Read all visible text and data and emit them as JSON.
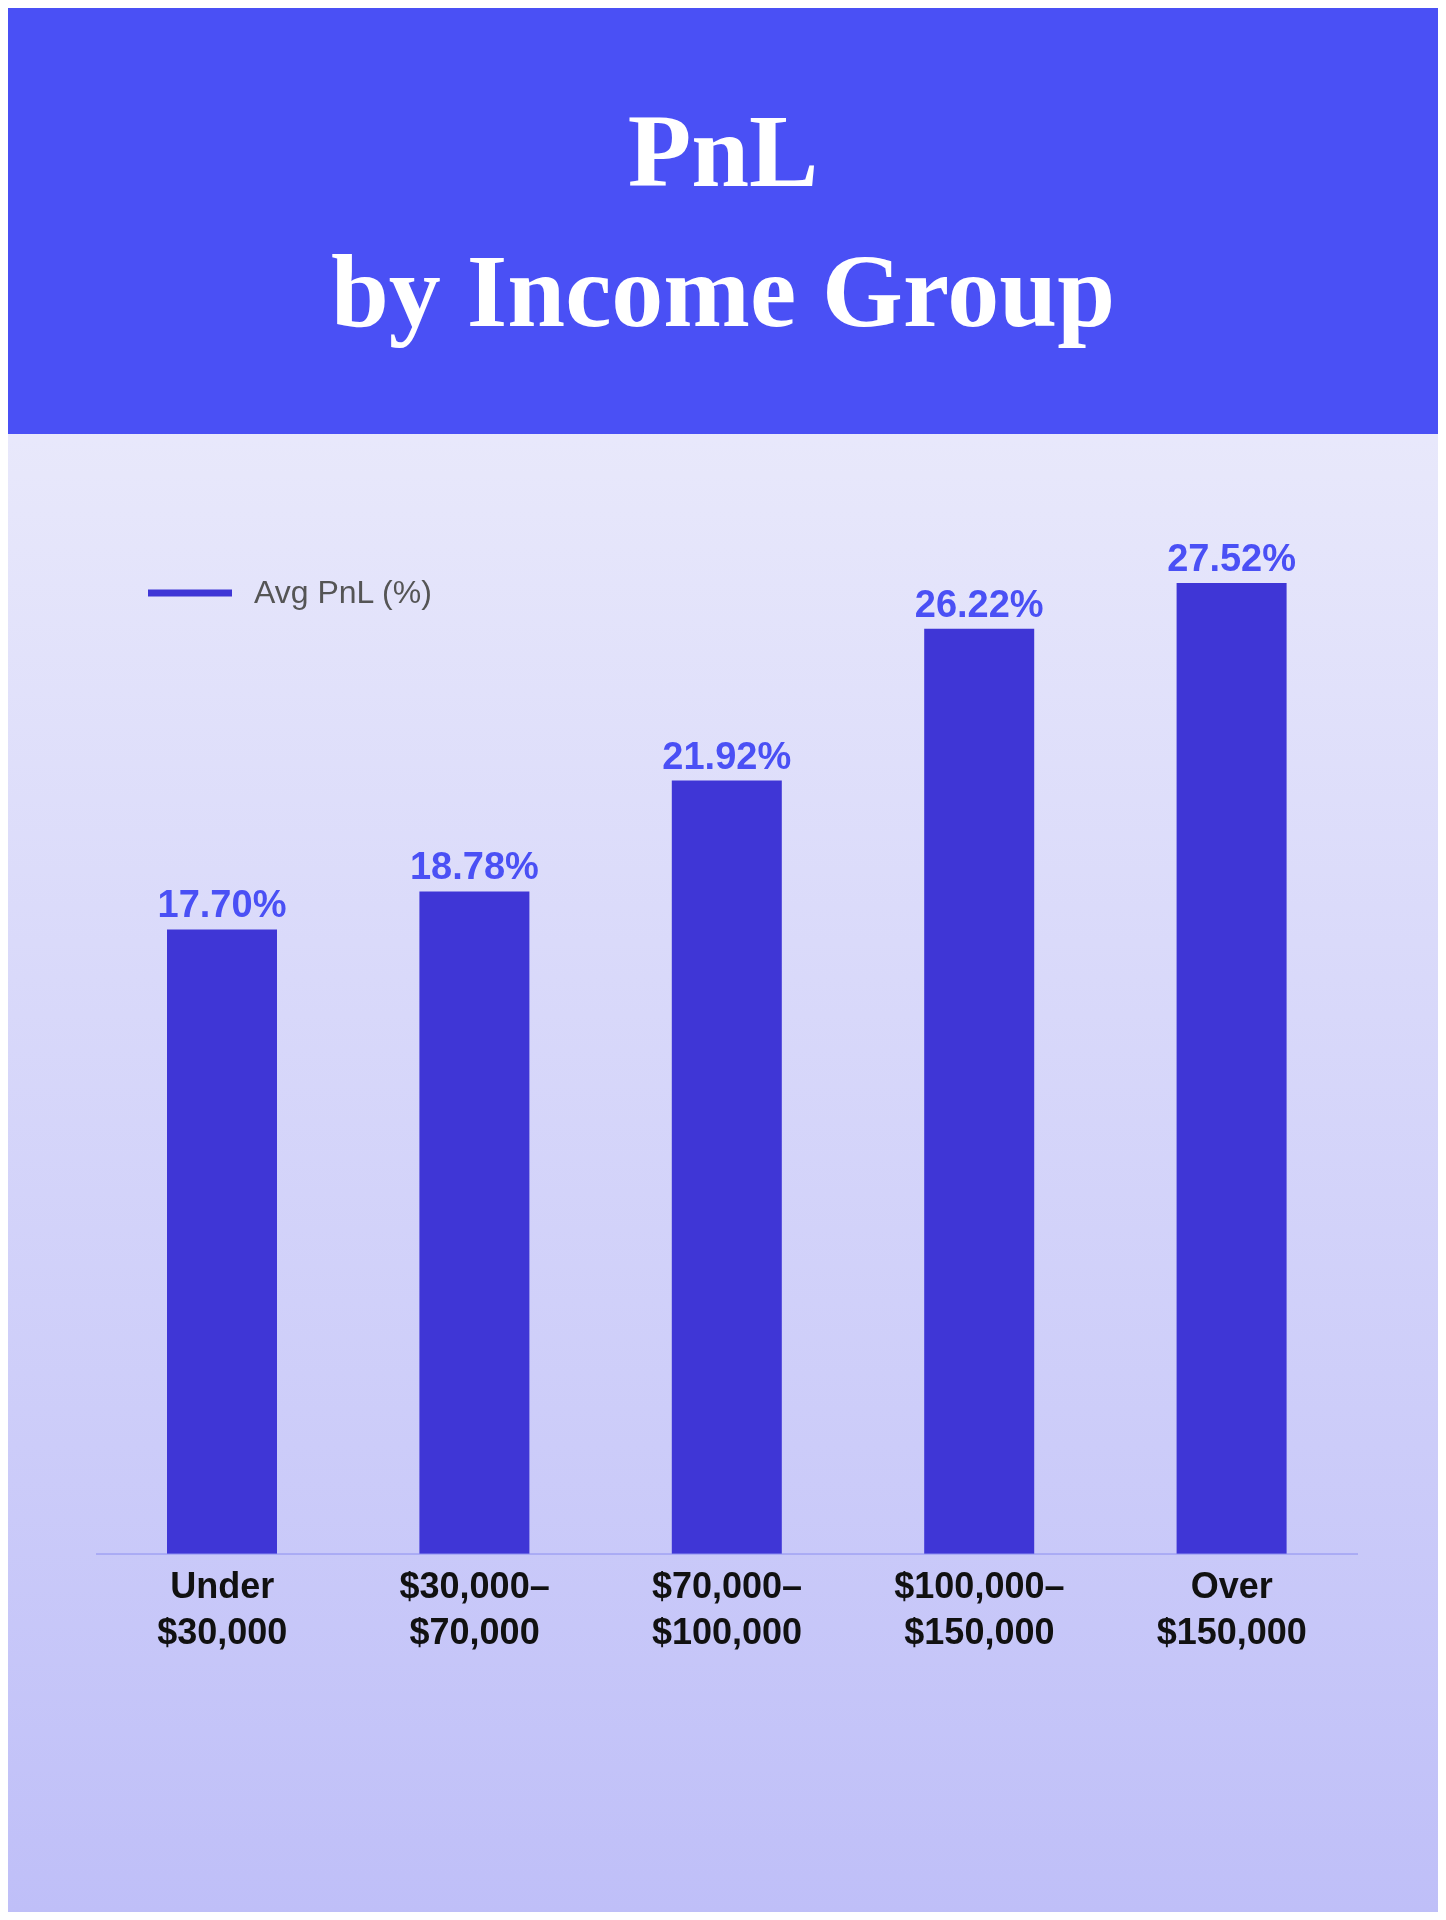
{
  "chart_data": {
    "type": "bar",
    "title": "PnL\nby Income Group",
    "categories": [
      "Under $30,000",
      "$30,000–$70,000",
      "$70,000–$100,000",
      "$100,000–$150,000",
      "Over $150,000"
    ],
    "series": [
      {
        "name": "Avg PnL (%)",
        "color": "#3f36d6",
        "values": [
          17.7,
          18.78,
          21.92,
          26.22,
          27.52
        ],
        "value_labels": [
          "17.70%",
          "18.78%",
          "21.92%",
          "26.22%",
          "27.52%"
        ]
      }
    ],
    "legend": "top left"
  }
}
